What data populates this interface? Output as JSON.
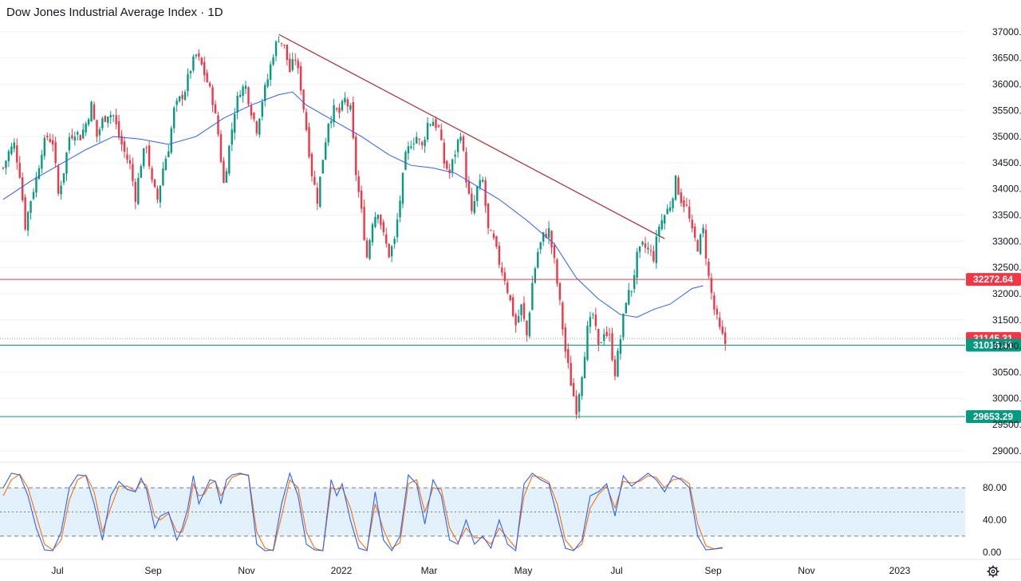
{
  "title": "Dow Jones Industrial Average Index · 1D",
  "chart_data": {
    "type": "candlestick",
    "ylim": [
      28800,
      37150
    ],
    "y_ticks": [
      "37000.00",
      "36500.00",
      "36000.00",
      "35500.00",
      "35000.00",
      "34500.00",
      "34000.00",
      "33500.00",
      "33000.00",
      "32500.00",
      "32000.00",
      "31500.00",
      "31000.00",
      "30500.00",
      "30000.00",
      "29500.00",
      "29000.00"
    ],
    "x_ticks": [
      "Jul",
      "Sep",
      "Nov",
      "2022",
      "Mar",
      "May",
      "Jul",
      "Sep",
      "Nov",
      "2023"
    ],
    "price_path": [
      [
        0,
        34400
      ],
      [
        2,
        34700
      ],
      [
        4,
        34850
      ],
      [
        6,
        34300
      ],
      [
        8,
        33300
      ],
      [
        10,
        33800
      ],
      [
        12,
        34200
      ],
      [
        14,
        34750
      ],
      [
        16,
        35000
      ],
      [
        18,
        34900
      ],
      [
        20,
        33900
      ],
      [
        22,
        34350
      ],
      [
        24,
        35000
      ],
      [
        26,
        35100
      ],
      [
        28,
        35000
      ],
      [
        30,
        35250
      ],
      [
        32,
        35600
      ],
      [
        34,
        35000
      ],
      [
        36,
        35300
      ],
      [
        38,
        35450
      ],
      [
        40,
        35400
      ],
      [
        42,
        35000
      ],
      [
        44,
        34700
      ],
      [
        46,
        34450
      ],
      [
        48,
        33850
      ],
      [
        50,
        34500
      ],
      [
        52,
        34850
      ],
      [
        54,
        34100
      ],
      [
        56,
        33800
      ],
      [
        58,
        34400
      ],
      [
        60,
        34800
      ],
      [
        62,
        35500
      ],
      [
        64,
        35700
      ],
      [
        66,
        35900
      ],
      [
        68,
        36300
      ],
      [
        70,
        36550
      ],
      [
        72,
        36350
      ],
      [
        74,
        36050
      ],
      [
        76,
        35700
      ],
      [
        78,
        35050
      ],
      [
        80,
        34100
      ],
      [
        82,
        34800
      ],
      [
        84,
        35500
      ],
      [
        86,
        35900
      ],
      [
        88,
        35950
      ],
      [
        90,
        35500
      ],
      [
        92,
        35150
      ],
      [
        94,
        35700
      ],
      [
        96,
        36100
      ],
      [
        98,
        36600
      ],
      [
        100,
        36900
      ],
      [
        102,
        36700
      ],
      [
        104,
        36250
      ],
      [
        106,
        36500
      ],
      [
        108,
        35950
      ],
      [
        110,
        35150
      ],
      [
        112,
        34300
      ],
      [
        114,
        33800
      ],
      [
        116,
        34600
      ],
      [
        118,
        35300
      ],
      [
        120,
        35500
      ],
      [
        122,
        35450
      ],
      [
        124,
        35700
      ],
      [
        126,
        35500
      ],
      [
        128,
        34300
      ],
      [
        130,
        33550
      ],
      [
        132,
        32700
      ],
      [
        134,
        33400
      ],
      [
        136,
        33600
      ],
      [
        138,
        33100
      ],
      [
        140,
        32750
      ],
      [
        142,
        33000
      ],
      [
        144,
        33800
      ],
      [
        146,
        34600
      ],
      [
        148,
        34900
      ],
      [
        150,
        35000
      ],
      [
        152,
        34800
      ],
      [
        154,
        35250
      ],
      [
        156,
        35300
      ],
      [
        158,
        35150
      ],
      [
        160,
        34500
      ],
      [
        162,
        34300
      ],
      [
        164,
        34700
      ],
      [
        166,
        35100
      ],
      [
        168,
        34200
      ],
      [
        170,
        33500
      ],
      [
        172,
        34000
      ],
      [
        174,
        34150
      ],
      [
        176,
        33200
      ],
      [
        178,
        33000
      ],
      [
        180,
        32600
      ],
      [
        182,
        32300
      ],
      [
        184,
        31850
      ],
      [
        186,
        31400
      ],
      [
        188,
        31750
      ],
      [
        190,
        31200
      ],
      [
        192,
        32200
      ],
      [
        194,
        32800
      ],
      [
        196,
        33100
      ],
      [
        198,
        33200
      ],
      [
        200,
        32600
      ],
      [
        202,
        31800
      ],
      [
        204,
        30900
      ],
      [
        206,
        30300
      ],
      [
        208,
        29800
      ],
      [
        210,
        30500
      ],
      [
        212,
        31300
      ],
      [
        214,
        31600
      ],
      [
        216,
        30950
      ],
      [
        218,
        31300
      ],
      [
        220,
        31150
      ],
      [
        222,
        30500
      ],
      [
        224,
        31150
      ],
      [
        226,
        31900
      ],
      [
        228,
        32100
      ],
      [
        230,
        32700
      ],
      [
        232,
        32900
      ],
      [
        234,
        32850
      ],
      [
        236,
        32700
      ],
      [
        238,
        33300
      ],
      [
        240,
        33500
      ],
      [
        242,
        33700
      ],
      [
        244,
        34150
      ],
      [
        246,
        33800
      ],
      [
        248,
        33650
      ],
      [
        250,
        33150
      ],
      [
        252,
        32900
      ],
      [
        254,
        33200
      ],
      [
        256,
        32300
      ],
      [
        258,
        31700
      ],
      [
        260,
        31300
      ],
      [
        262,
        31050
      ]
    ],
    "ma_path": [
      [
        0,
        33800
      ],
      [
        10,
        34150
      ],
      [
        20,
        34450
      ],
      [
        30,
        34750
      ],
      [
        40,
        35000
      ],
      [
        50,
        34950
      ],
      [
        60,
        34850
      ],
      [
        70,
        35000
      ],
      [
        80,
        35350
      ],
      [
        90,
        35600
      ],
      [
        100,
        35800
      ],
      [
        105,
        35850
      ],
      [
        110,
        35600
      ],
      [
        120,
        35300
      ],
      [
        130,
        35000
      ],
      [
        140,
        34650
      ],
      [
        148,
        34450
      ],
      [
        156,
        34400
      ],
      [
        164,
        34300
      ],
      [
        172,
        34050
      ],
      [
        180,
        33800
      ],
      [
        190,
        33400
      ],
      [
        200,
        32950
      ],
      [
        208,
        32300
      ],
      [
        216,
        31900
      ],
      [
        224,
        31600
      ],
      [
        230,
        31550
      ],
      [
        236,
        31700
      ],
      [
        242,
        31800
      ],
      [
        250,
        32100
      ],
      [
        254,
        32150
      ]
    ],
    "h_levels": [
      {
        "value": 32272.64,
        "label": "32272.64",
        "color": "#f23645"
      },
      {
        "value": 31145.31,
        "label": "31145.31",
        "color": "#f23645"
      },
      {
        "value": 31016.41,
        "label": "31016.41",
        "color": "#089981"
      },
      {
        "value": 29653.29,
        "label": "29653.29",
        "color": "#089981"
      }
    ],
    "trendline": [
      [
        100,
        36950
      ],
      [
        240,
        33050
      ]
    ],
    "stoch": {
      "ylim": [
        -2,
        103
      ],
      "y_ticks": [
        "80.00",
        "40.00",
        "0.00"
      ],
      "band": [
        20,
        80
      ],
      "mid": 50,
      "k": [
        [
          0,
          80
        ],
        [
          3,
          98
        ],
        [
          6,
          96
        ],
        [
          9,
          70
        ],
        [
          12,
          30
        ],
        [
          15,
          3
        ],
        [
          18,
          2
        ],
        [
          21,
          25
        ],
        [
          24,
          80
        ],
        [
          27,
          96
        ],
        [
          30,
          95
        ],
        [
          33,
          60
        ],
        [
          36,
          15
        ],
        [
          39,
          70
        ],
        [
          42,
          88
        ],
        [
          45,
          78
        ],
        [
          48,
          75
        ],
        [
          50,
          92
        ],
        [
          52,
          78
        ],
        [
          55,
          30
        ],
        [
          57,
          45
        ],
        [
          60,
          50
        ],
        [
          63,
          15
        ],
        [
          65,
          30
        ],
        [
          67,
          55
        ],
        [
          69,
          95
        ],
        [
          71,
          60
        ],
        [
          73,
          75
        ],
        [
          75,
          90
        ],
        [
          77,
          88
        ],
        [
          79,
          60
        ],
        [
          81,
          90
        ],
        [
          83,
          96
        ],
        [
          86,
          98
        ],
        [
          89,
          95
        ],
        [
          92,
          10
        ],
        [
          95,
          2
        ],
        [
          98,
          3
        ],
        [
          101,
          60
        ],
        [
          104,
          98
        ],
        [
          107,
          70
        ],
        [
          110,
          10
        ],
        [
          113,
          3
        ],
        [
          116,
          2
        ],
        [
          119,
          90
        ],
        [
          121,
          70
        ],
        [
          123,
          85
        ],
        [
          126,
          40
        ],
        [
          129,
          5
        ],
        [
          132,
          2
        ],
        [
          135,
          75
        ],
        [
          138,
          15
        ],
        [
          141,
          2
        ],
        [
          144,
          20
        ],
        [
          147,
          96
        ],
        [
          150,
          85
        ],
        [
          153,
          35
        ],
        [
          156,
          90
        ],
        [
          159,
          70
        ],
        [
          162,
          15
        ],
        [
          165,
          10
        ],
        [
          168,
          40
        ],
        [
          171,
          10
        ],
        [
          174,
          20
        ],
        [
          177,
          5
        ],
        [
          180,
          40
        ],
        [
          183,
          10
        ],
        [
          186,
          2
        ],
        [
          189,
          85
        ],
        [
          192,
          98
        ],
        [
          195,
          90
        ],
        [
          198,
          85
        ],
        [
          201,
          45
        ],
        [
          204,
          5
        ],
        [
          207,
          2
        ],
        [
          210,
          15
        ],
        [
          213,
          70
        ],
        [
          216,
          75
        ],
        [
          219,
          85
        ],
        [
          222,
          45
        ],
        [
          225,
          95
        ],
        [
          228,
          82
        ],
        [
          231,
          90
        ],
        [
          234,
          98
        ],
        [
          237,
          90
        ],
        [
          240,
          75
        ],
        [
          243,
          95
        ],
        [
          246,
          90
        ],
        [
          249,
          80
        ],
        [
          252,
          20
        ],
        [
          255,
          3
        ],
        [
          258,
          4
        ],
        [
          261,
          6
        ]
      ],
      "d": [
        [
          0,
          70
        ],
        [
          3,
          90
        ],
        [
          6,
          97
        ],
        [
          9,
          80
        ],
        [
          12,
          45
        ],
        [
          15,
          10
        ],
        [
          18,
          3
        ],
        [
          21,
          15
        ],
        [
          24,
          65
        ],
        [
          27,
          90
        ],
        [
          30,
          96
        ],
        [
          33,
          75
        ],
        [
          36,
          25
        ],
        [
          39,
          55
        ],
        [
          42,
          82
        ],
        [
          45,
          82
        ],
        [
          48,
          76
        ],
        [
          50,
          88
        ],
        [
          52,
          83
        ],
        [
          55,
          45
        ],
        [
          57,
          40
        ],
        [
          60,
          48
        ],
        [
          63,
          25
        ],
        [
          65,
          25
        ],
        [
          67,
          45
        ],
        [
          69,
          85
        ],
        [
          71,
          70
        ],
        [
          73,
          72
        ],
        [
          75,
          85
        ],
        [
          77,
          88
        ],
        [
          79,
          70
        ],
        [
          81,
          82
        ],
        [
          83,
          93
        ],
        [
          86,
          97
        ],
        [
          89,
          96
        ],
        [
          92,
          25
        ],
        [
          95,
          5
        ],
        [
          98,
          2
        ],
        [
          101,
          45
        ],
        [
          104,
          90
        ],
        [
          107,
          80
        ],
        [
          110,
          25
        ],
        [
          113,
          5
        ],
        [
          116,
          2
        ],
        [
          119,
          80
        ],
        [
          121,
          78
        ],
        [
          123,
          80
        ],
        [
          126,
          55
        ],
        [
          129,
          15
        ],
        [
          132,
          3
        ],
        [
          135,
          60
        ],
        [
          138,
          28
        ],
        [
          141,
          5
        ],
        [
          144,
          12
        ],
        [
          147,
          85
        ],
        [
          150,
          90
        ],
        [
          153,
          50
        ],
        [
          156,
          80
        ],
        [
          159,
          78
        ],
        [
          162,
          30
        ],
        [
          165,
          12
        ],
        [
          168,
          30
        ],
        [
          171,
          18
        ],
        [
          174,
          18
        ],
        [
          177,
          10
        ],
        [
          180,
          30
        ],
        [
          183,
          18
        ],
        [
          186,
          5
        ],
        [
          189,
          70
        ],
        [
          192,
          95
        ],
        [
          195,
          93
        ],
        [
          198,
          87
        ],
        [
          201,
          60
        ],
        [
          204,
          15
        ],
        [
          207,
          3
        ],
        [
          210,
          10
        ],
        [
          213,
          55
        ],
        [
          216,
          72
        ],
        [
          219,
          82
        ],
        [
          222,
          55
        ],
        [
          225,
          88
        ],
        [
          228,
          86
        ],
        [
          231,
          88
        ],
        [
          234,
          95
        ],
        [
          237,
          93
        ],
        [
          240,
          80
        ],
        [
          243,
          90
        ],
        [
          246,
          92
        ],
        [
          249,
          85
        ],
        [
          252,
          35
        ],
        [
          255,
          8
        ],
        [
          258,
          4
        ],
        [
          261,
          5
        ]
      ]
    }
  },
  "colors": {
    "up": "#089981",
    "down": "#f23645",
    "ma": "#2962ff",
    "trend": "#b22833",
    "stoch_k": "#2962ff",
    "stoch_d": "#ff6d00",
    "band_fill": "#e3f1fc"
  },
  "icons": {
    "settings": "gear-icon"
  }
}
